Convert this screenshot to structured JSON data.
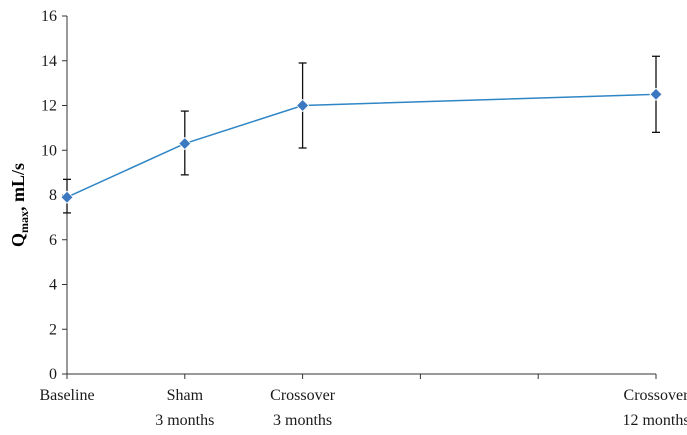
{
  "chart_data": {
    "type": "line",
    "categories": [
      [
        "Baseline"
      ],
      [
        "Sham",
        "3 months"
      ],
      [
        "Crossover",
        "3 months"
      ],
      [
        "Crossover",
        "12 months"
      ]
    ],
    "x": [
      0,
      1,
      2,
      5
    ],
    "x_range": [
      0,
      5
    ],
    "series": [
      {
        "values": [
          7.9,
          10.3,
          12.0,
          12.5
        ],
        "error_low": [
          7.2,
          8.9,
          10.1,
          10.8
        ],
        "error_high": [
          8.7,
          11.75,
          13.9,
          14.2
        ],
        "color": "#2f86c5",
        "marker_color": "#3c78c0",
        "marker": "diamond"
      }
    ],
    "ylabel": {
      "main": "Q",
      "subscript": "max",
      "rest": ", mL/s"
    },
    "ylim": [
      0,
      16
    ],
    "yticks": [
      0,
      2,
      4,
      6,
      8,
      10,
      12,
      14,
      16
    ],
    "xticks": [
      0,
      1,
      2,
      3,
      4,
      5
    ],
    "grid": false,
    "legend": false
  }
}
